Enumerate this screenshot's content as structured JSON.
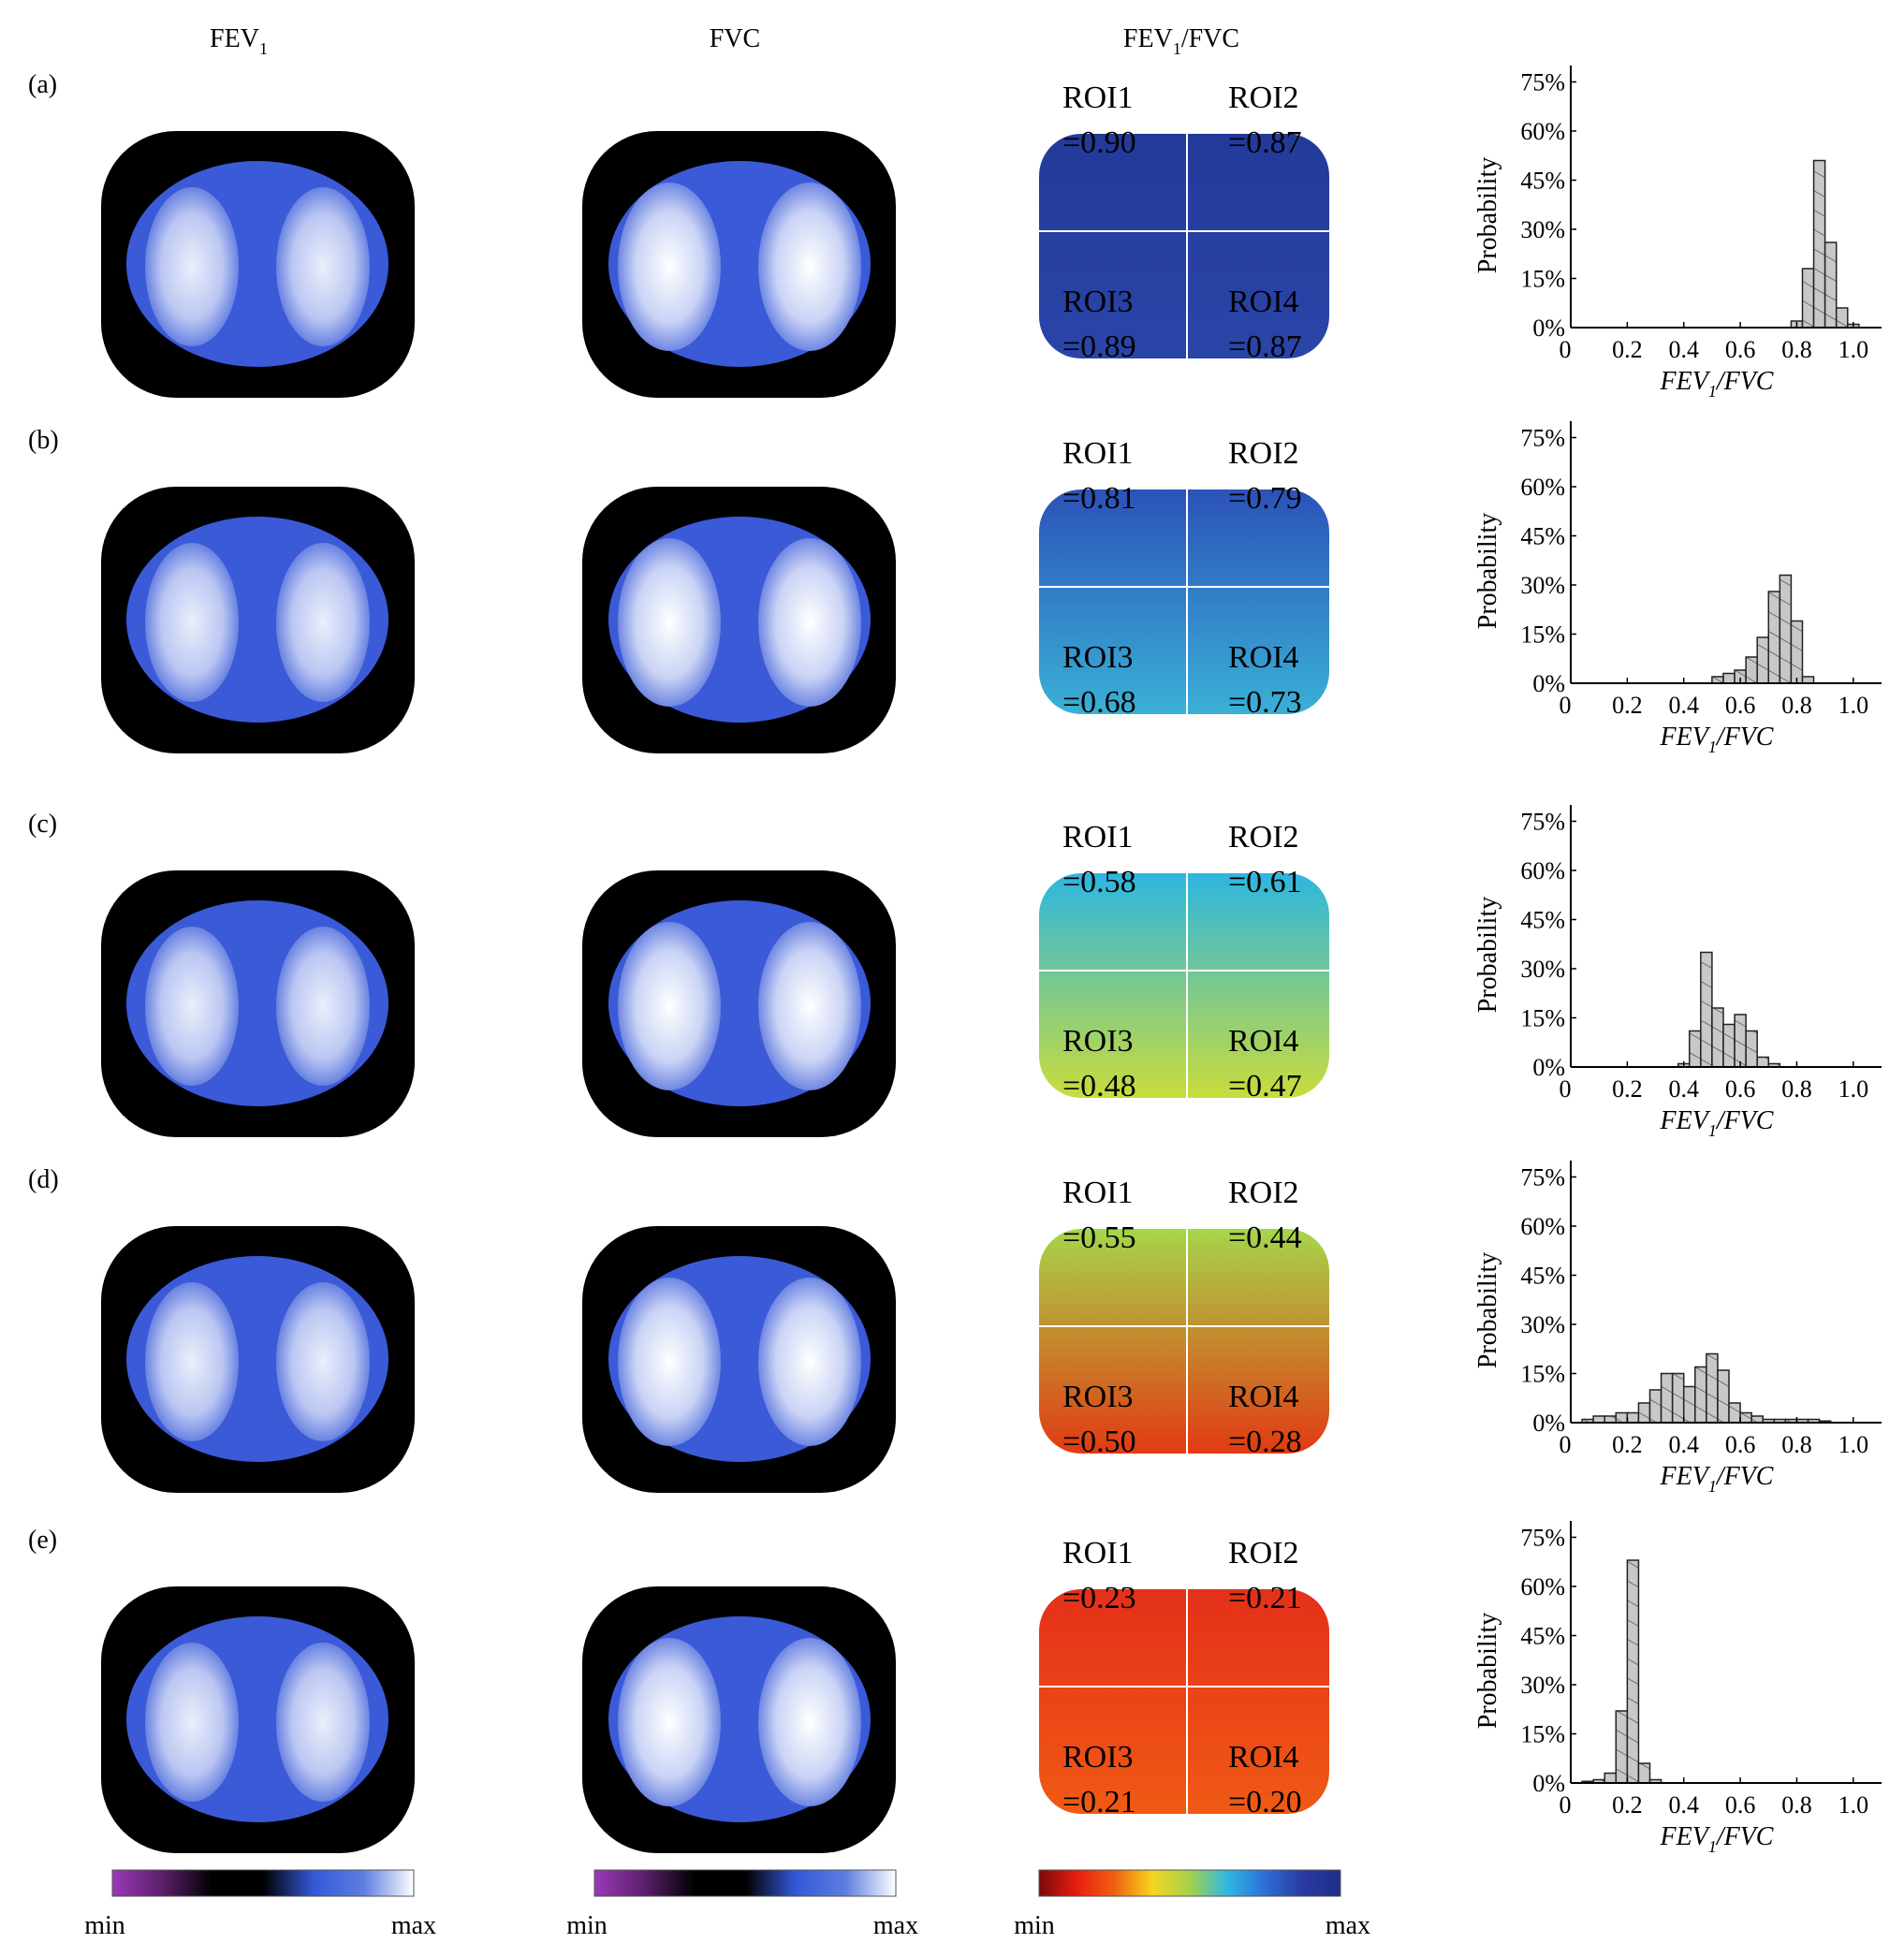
{
  "column_headers": {
    "fev1": "FEV",
    "fev1_sub": "1",
    "fvc": "FVC",
    "ratio": "FEV",
    "ratio_sub": "1",
    "ratio_tail": "/FVC"
  },
  "colorbars": [
    {
      "min": "min",
      "max": "max",
      "colors": [
        "#9a3ab8",
        "#5a1f6a",
        "#000000",
        "#000000",
        "#3358d6",
        "#5d7ee0",
        "#ffffff"
      ]
    },
    {
      "min": "min",
      "max": "max",
      "colors": [
        "#9a3ab8",
        "#5a1f6a",
        "#000000",
        "#000000",
        "#3358d6",
        "#5d7ee0",
        "#ffffff"
      ]
    },
    {
      "min": "min",
      "max": "max",
      "colors": [
        "#7a0a0a",
        "#e81d10",
        "#f06010",
        "#f5d520",
        "#a4d24a",
        "#2fb7e3",
        "#2e6ed6",
        "#2a3aa0",
        "#1f2d8a"
      ]
    }
  ],
  "chart_data": [
    {
      "type": "bar",
      "panel": "(a)",
      "rois": [
        "ROI1",
        "=0.90",
        "ROI2",
        "=0.87",
        "ROI3",
        "=0.89",
        "ROI4",
        "=0.87"
      ],
      "x": [
        0.8,
        0.84,
        0.88,
        0.92,
        0.96,
        1.0
      ],
      "values": [
        2,
        18,
        51,
        26,
        6,
        1
      ],
      "bin_width": 0.04,
      "ylabel": "Probability",
      "xlabel": "FEV",
      "xlabel_sub": "1",
      "xlabel_tail": "/FVC",
      "xticks": [
        "0",
        "0.2",
        "0.4",
        "0.6",
        "0.8",
        "1.0"
      ],
      "yticks": [
        "0%",
        "15%",
        "30%",
        "45%",
        "60%",
        "75%"
      ],
      "xlim": [
        0,
        1.1
      ],
      "ylim": [
        0,
        80
      ]
    },
    {
      "type": "bar",
      "panel": "(b)",
      "rois": [
        "ROI1",
        "=0.81",
        "ROI2",
        "=0.79",
        "ROI3",
        "=0.68",
        "ROI4",
        "=0.73"
      ],
      "x": [
        0.52,
        0.56,
        0.6,
        0.64,
        0.68,
        0.72,
        0.76,
        0.8,
        0.84
      ],
      "values": [
        2,
        3,
        4,
        8,
        14,
        28,
        33,
        19,
        2
      ],
      "bin_width": 0.04,
      "ylabel": "Probability",
      "xlabel": "FEV",
      "xlabel_sub": "1",
      "xlabel_tail": "/FVC",
      "xticks": [
        "0",
        "0.2",
        "0.4",
        "0.6",
        "0.8",
        "1.0"
      ],
      "yticks": [
        "0%",
        "15%",
        "30%",
        "45%",
        "60%",
        "75%"
      ],
      "xlim": [
        0,
        1.1
      ],
      "ylim": [
        0,
        80
      ]
    },
    {
      "type": "bar",
      "panel": "(c)",
      "rois": [
        "ROI1",
        "=0.58",
        "ROI2",
        "=0.61",
        "ROI3",
        "=0.48",
        "ROI4",
        "=0.47"
      ],
      "x": [
        0.4,
        0.44,
        0.48,
        0.52,
        0.56,
        0.6,
        0.64,
        0.68,
        0.72
      ],
      "values": [
        1,
        11,
        35,
        18,
        13,
        16,
        11,
        3,
        1
      ],
      "bin_width": 0.04,
      "ylabel": "Probability",
      "xlabel": "FEV",
      "xlabel_sub": "1",
      "xlabel_tail": "/FVC",
      "xticks": [
        "0",
        "0.2",
        "0.4",
        "0.6",
        "0.8",
        "1.0"
      ],
      "yticks": [
        "0%",
        "15%",
        "30%",
        "45%",
        "60%",
        "75%"
      ],
      "xlim": [
        0,
        1.1
      ],
      "ylim": [
        0,
        80
      ]
    },
    {
      "type": "bar",
      "panel": "(d)",
      "rois": [
        "ROI1",
        "=0.55",
        "ROI2",
        "=0.44",
        "ROI3",
        "=0.50",
        "ROI4",
        "=0.28"
      ],
      "x": [
        0.06,
        0.1,
        0.14,
        0.18,
        0.22,
        0.26,
        0.3,
        0.34,
        0.38,
        0.42,
        0.46,
        0.5,
        0.54,
        0.58,
        0.62,
        0.66,
        0.7,
        0.74,
        0.78,
        0.82,
        0.86,
        0.9
      ],
      "values": [
        1,
        2,
        2,
        3,
        3,
        6,
        10,
        15,
        15,
        11,
        17,
        21,
        16,
        6,
        3,
        2,
        1,
        1,
        1,
        1,
        1,
        0.5
      ],
      "bin_width": 0.04,
      "ylabel": "Probability",
      "xlabel": "FEV",
      "xlabel_sub": "1",
      "xlabel_tail": "/FVC",
      "xticks": [
        "0",
        "0.2",
        "0.4",
        "0.6",
        "0.8",
        "1.0"
      ],
      "yticks": [
        "0%",
        "15%",
        "30%",
        "45%",
        "60%",
        "75%"
      ],
      "xlim": [
        0,
        1.1
      ],
      "ylim": [
        0,
        80
      ]
    },
    {
      "type": "bar",
      "panel": "(e)",
      "rois": [
        "ROI1",
        "=0.23",
        "ROI2",
        "=0.21",
        "ROI3",
        "=0.21",
        "ROI4",
        "=0.20"
      ],
      "x": [
        0.06,
        0.1,
        0.14,
        0.18,
        0.22,
        0.26,
        0.3
      ],
      "values": [
        0.5,
        1,
        3,
        22,
        68,
        6,
        1
      ],
      "bin_width": 0.04,
      "ylabel": "Probability",
      "xlabel": "FEV",
      "xlabel_sub": "1",
      "xlabel_tail": "/FVC",
      "xticks": [
        "0",
        "0.2",
        "0.4",
        "0.6",
        "0.8",
        "1.0"
      ],
      "yticks": [
        "0%",
        "15%",
        "30%",
        "45%",
        "60%",
        "75%"
      ],
      "xlim": [
        0,
        1.1
      ],
      "ylim": [
        0,
        80
      ]
    }
  ]
}
